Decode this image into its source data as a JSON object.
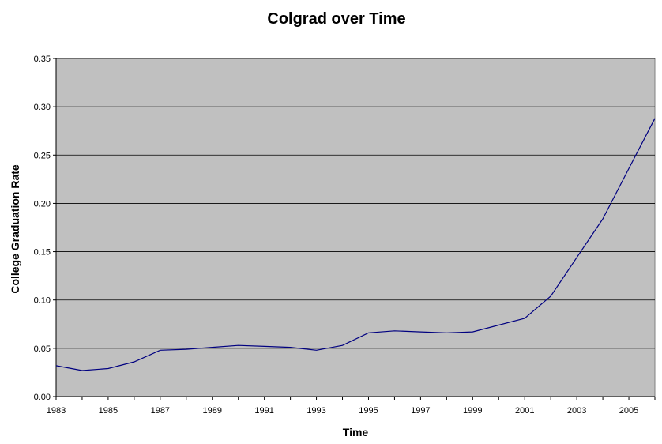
{
  "chart_data": {
    "type": "line",
    "title": "Colgrad over Time",
    "xlabel": "Time",
    "ylabel": "College Graduation Rate",
    "ylim": [
      0,
      0.35
    ],
    "yticks": [
      "0.00",
      "0.05",
      "0.10",
      "0.15",
      "0.20",
      "0.25",
      "0.30",
      "0.35"
    ],
    "xlim": [
      1983,
      2006
    ],
    "xticks": [
      "1983",
      "1985",
      "1987",
      "1989",
      "1991",
      "1993",
      "1995",
      "1997",
      "1999",
      "2001",
      "2003",
      "2005"
    ],
    "grid": true,
    "plot_background": "#c0c0c0",
    "line_color": "#000080",
    "series": [
      {
        "x": [
          1983,
          1984,
          1985,
          1986,
          1987,
          1988,
          1989,
          1990,
          1991,
          1992,
          1993,
          1994,
          1995,
          1996,
          1997,
          1998,
          1999,
          2000,
          2001,
          2002,
          2003,
          2004,
          2005,
          2006
        ],
        "values": [
          0.032,
          0.027,
          0.029,
          0.036,
          0.048,
          0.049,
          0.051,
          0.053,
          0.052,
          0.051,
          0.048,
          0.053,
          0.066,
          0.068,
          0.067,
          0.066,
          0.067,
          0.074,
          0.081,
          0.104,
          0.144,
          0.184,
          0.236,
          0.288
        ]
      }
    ]
  }
}
